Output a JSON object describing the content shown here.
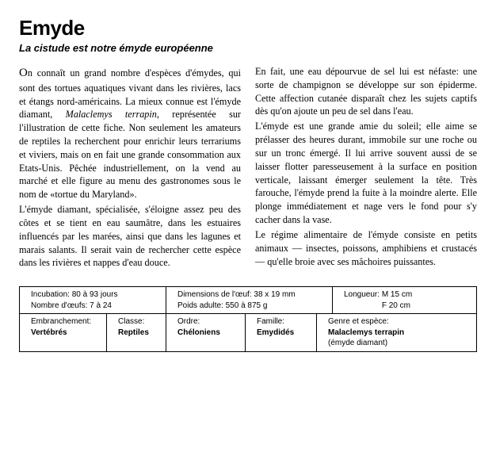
{
  "title": "Emyde",
  "subtitle": "La cistude est notre émyde européenne",
  "body": {
    "p1a": "On connaît un grand nombre d'espèces d'émydes, qui sont des tortues aquatiques vivant dans les rivières, lacs et étangs nord-américains. La mieux connue est l'émyde diamant, ",
    "p1i": "Malaclemys terrapin,",
    "p1b": " représentée sur l'illustration de cette fiche. Non seulement les amateurs de reptiles la recherchent pour enrichir leurs terrariums et viviers, mais on en fait une grande consommation aux Etats-Unis. Pêchée industriellement, on la vend au marché et elle figure au menu des gastronomes sous le nom de «tortue du Maryland».",
    "p2": "L'émyde diamant, spécialisée, s'éloigne assez peu des côtes et se tient en eau saumâtre, dans les estuaires influencés par les marées, ainsi que dans les lagunes et marais salants. Il serait vain de rechercher cette espèce dans les rivières et nappes d'eau douce.",
    "p3": "En fait, une eau dépourvue de sel lui est néfaste: une sorte de champignon se développe sur son épiderme. Cette affection cutanée disparaît chez les sujets captifs dès qu'on ajoute un peu de sel dans l'eau.",
    "p4": "L'émyde est une grande amie du soleil; elle aime se prélasser des heures durant, immobile sur une roche ou sur un tronc émergé. Il lui arrive souvent aussi de se laisser flotter paresseusement à la surface en position verticale, laissant émerger seulement la tête. Très farouche, l'émyde prend la fuite à la moindre alerte. Elle plonge immédiatement et nage vers le fond pour s'y cacher dans la vase.",
    "p5": "Le régime alimentaire de l'émyde consiste en petits animaux — insectes, poissons, amphibiens et crustacés — qu'elle broie avec ses mâchoires puissantes."
  },
  "info": {
    "row1": {
      "incubation_label": "Incubation:",
      "incubation_value": "80 à 93 jours",
      "oeufs_label": "Nombre d'œufs:",
      "oeufs_value": "7 à 24",
      "dim_label": "Dimensions de l'œuf:",
      "dim_value": "38 x 19 mm",
      "poids_label": "Poids adulte:",
      "poids_value": "550 à 875 g",
      "long_label": "Longueur:",
      "long_m": "M 15 cm",
      "long_f": "F  20 cm"
    },
    "row2": {
      "embr_label": "Embranchement:",
      "embr_value": "Vertébrés",
      "classe_label": "Classe:",
      "classe_value": "Reptiles",
      "ordre_label": "Ordre:",
      "ordre_value": "Chéloniens",
      "famille_label": "Famille:",
      "famille_value": "Emydidés",
      "genre_label": "Genre et espèce:",
      "genre_value": "Malaclemys terrapin",
      "genre_note": "(émyde diamant)"
    }
  }
}
